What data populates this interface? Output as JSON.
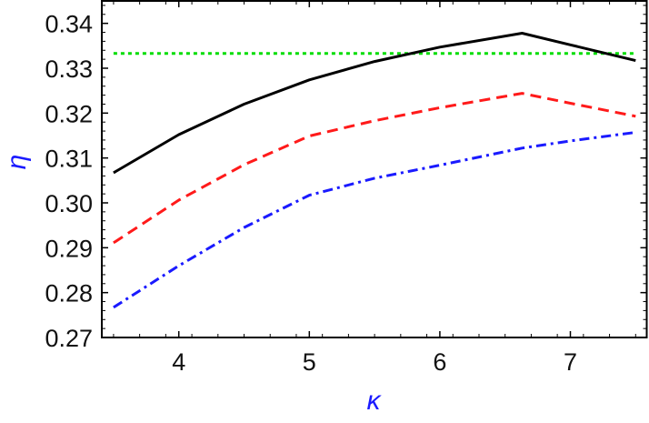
{
  "chart_data": {
    "type": "line",
    "title": "",
    "xlabel": "κ",
    "ylabel": "η",
    "label_color": "#1a1aff",
    "xlim": [
      3.41,
      7.585
    ],
    "ylim": [
      0.27,
      0.345
    ],
    "xticks": [
      4,
      5,
      6,
      7
    ],
    "xtick_labels": [
      "4",
      "5",
      "6",
      "7"
    ],
    "yticks": [
      0.27,
      0.28,
      0.29,
      0.3,
      0.31,
      0.32,
      0.33,
      0.34
    ],
    "ytick_labels": [
      "0.27",
      "0.28",
      "0.29",
      "0.30",
      "0.31",
      "0.32",
      "0.33",
      "0.34"
    ],
    "grid": false,
    "series": [
      {
        "color": "#00dd00",
        "style": "dotted",
        "x": [
          3.5,
          7.5
        ],
        "y": [
          0.3333,
          0.3333
        ]
      },
      {
        "color": "#000000",
        "style": "solid",
        "x": [
          3.5,
          4,
          4.5,
          5,
          5.5,
          6,
          6.63,
          7,
          7.5
        ],
        "y": [
          0.3067,
          0.3152,
          0.322,
          0.3274,
          0.3315,
          0.3347,
          0.3378,
          0.3352,
          0.3317
        ]
      },
      {
        "color": "#ff1a1a",
        "style": "dashed",
        "x": [
          3.5,
          4,
          4.5,
          5,
          5.5,
          6,
          6.63,
          7,
          7.5
        ],
        "y": [
          0.2911,
          0.3006,
          0.3085,
          0.3149,
          0.3183,
          0.3212,
          0.3244,
          0.3222,
          0.3193
        ]
      },
      {
        "color": "#1a1aff",
        "style": "dashdot",
        "x": [
          3.5,
          4,
          4.5,
          5,
          5.5,
          6,
          6.63,
          7,
          7.5
        ],
        "y": [
          0.2767,
          0.286,
          0.2945,
          0.3017,
          0.3055,
          0.3084,
          0.3122,
          0.3138,
          0.3157
        ]
      }
    ]
  }
}
